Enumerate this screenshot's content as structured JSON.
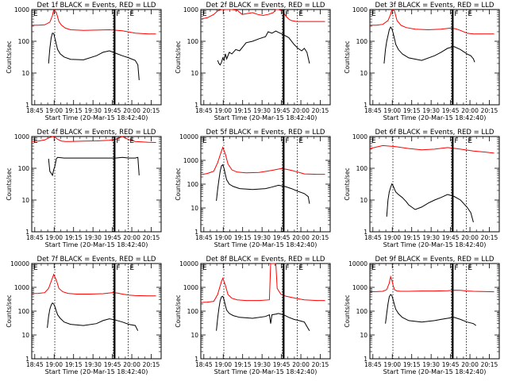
{
  "colors": {
    "events": "#000000",
    "lld": "#ff0000",
    "axes": "#000000",
    "bg": "#ffffff"
  },
  "common": {
    "xlabel": "Start Time (20-Mar-15 18:42:40)",
    "ylabel": "Counts/sec",
    "xticks": [
      "18:45",
      "19:00",
      "19:15",
      "19:30",
      "19:45",
      "20:00",
      "20:15"
    ],
    "xtick_minutes": [
      2.33,
      17.33,
      32.33,
      47.33,
      62.33,
      77.33,
      92.33
    ],
    "xlim_minutes": [
      0,
      100
    ],
    "flag_letters": [
      "E",
      "F",
      "E"
    ],
    "dotted_lines_minutes": [
      17.8,
      63.0,
      74.5
    ],
    "solid_line_minutes": 64.0
  },
  "chart_data": [
    {
      "type": "line",
      "title": "Det 1f BLACK = Events, RED = LLD",
      "yscale": "log",
      "ylim": [
        1,
        1000
      ],
      "yticks": [
        "1",
        "10",
        "100",
        "1000"
      ],
      "ytick_values": [
        1,
        10,
        100,
        1000
      ],
      "series": [
        {
          "color": "#ff0000",
          "t": [
            0,
            5,
            10,
            14,
            16,
            17,
            19,
            21,
            23,
            26,
            30,
            40,
            50,
            60,
            70,
            80,
            90,
            96
          ],
          "values": [
            320,
            320,
            330,
            400,
            650,
            1000,
            800,
            420,
            320,
            260,
            230,
            220,
            225,
            230,
            215,
            180,
            170,
            170
          ]
        },
        {
          "color": "#000000",
          "t": [
            13,
            14,
            15,
            16,
            17,
            18,
            19,
            20,
            22,
            25,
            30,
            40,
            50,
            55,
            60,
            65,
            70,
            75,
            80,
            82,
            83
          ],
          "values": [
            20,
            60,
            130,
            180,
            175,
            120,
            80,
            55,
            40,
            32,
            27,
            26,
            35,
            45,
            50,
            42,
            35,
            30,
            25,
            18,
            6
          ]
        }
      ]
    },
    {
      "type": "line",
      "title": "Det 2f BLACK = Events, RED = LLD",
      "yscale": "log",
      "ylim": [
        1,
        1000
      ],
      "yticks": [
        "1",
        "10",
        "100",
        "1000"
      ],
      "ytick_values": [
        1,
        10,
        100,
        1000
      ],
      "series": [
        {
          "color": "#ff0000",
          "t": [
            0,
            5,
            10,
            13,
            16,
            17,
            20,
            24,
            28,
            32,
            36,
            40,
            44,
            48,
            52,
            56,
            58,
            60,
            63,
            66,
            68,
            70,
            74,
            80,
            90,
            96
          ],
          "values": [
            500,
            550,
            700,
            900,
            1000,
            1000,
            1000,
            1000,
            950,
            700,
            750,
            800,
            700,
            650,
            700,
            800,
            1000,
            1000,
            900,
            600,
            500,
            450,
            420,
            420,
            420,
            420
          ]
        },
        {
          "color": "#000000",
          "t": [
            13,
            14,
            15,
            16,
            17,
            18,
            19,
            20,
            22,
            24,
            27,
            30,
            35,
            40,
            45,
            50,
            52,
            55,
            58,
            60,
            64,
            68,
            72,
            75,
            78,
            80,
            82,
            84
          ],
          "values": [
            25,
            20,
            18,
            22,
            30,
            25,
            40,
            28,
            45,
            40,
            55,
            50,
            90,
            100,
            120,
            140,
            200,
            180,
            210,
            190,
            160,
            130,
            80,
            60,
            50,
            60,
            45,
            20
          ]
        }
      ]
    },
    {
      "type": "line",
      "title": "Det 3f BLACK = Events, RED = LLD",
      "yscale": "log",
      "ylim": [
        1,
        1000
      ],
      "yticks": [
        "1",
        "10",
        "100",
        "1000"
      ],
      "ytick_values": [
        1,
        10,
        100,
        1000
      ],
      "series": [
        {
          "color": "#ff0000",
          "t": [
            0,
            5,
            10,
            14,
            16,
            17,
            19,
            21,
            24,
            28,
            35,
            45,
            55,
            62,
            66,
            70,
            75,
            80,
            90,
            96
          ],
          "values": [
            320,
            320,
            340,
            450,
            700,
            1000,
            900,
            450,
            320,
            270,
            240,
            230,
            240,
            260,
            250,
            220,
            180,
            170,
            170,
            170
          ]
        },
        {
          "color": "#000000",
          "t": [
            11,
            12,
            13,
            14,
            15,
            16,
            17,
            18,
            19,
            20,
            22,
            25,
            30,
            40,
            50,
            55,
            60,
            65,
            70,
            75,
            78,
            80,
            81
          ],
          "values": [
            20,
            55,
            100,
            150,
            230,
            280,
            250,
            180,
            120,
            80,
            55,
            40,
            30,
            25,
            35,
            45,
            60,
            68,
            55,
            40,
            35,
            28,
            22
          ]
        }
      ]
    },
    {
      "type": "line",
      "title": "Det 4f BLACK = Events, RED = LLD",
      "yscale": "log",
      "ylim": [
        1,
        1000
      ],
      "yticks": [
        "1",
        "10",
        "100",
        "1000"
      ],
      "ytick_values": [
        1,
        10,
        100,
        1000
      ],
      "series": [
        {
          "color": "#ff0000",
          "t": [
            0,
            5,
            10,
            13,
            16,
            18,
            20,
            23,
            26,
            30,
            40,
            50,
            60,
            65,
            70,
            75,
            80,
            85,
            90,
            96
          ],
          "values": [
            700,
            720,
            780,
            900,
            1000,
            950,
            820,
            720,
            700,
            700,
            720,
            730,
            760,
            820,
            1000,
            800,
            700,
            680,
            660,
            650
          ]
        },
        {
          "color": "#000000",
          "t": [
            13,
            14,
            15,
            16,
            17,
            18,
            19,
            20,
            25,
            30,
            40,
            50,
            60,
            65,
            70,
            75,
            80,
            82,
            83
          ],
          "values": [
            200,
            80,
            70,
            60,
            90,
            120,
            200,
            220,
            210,
            210,
            210,
            210,
            210,
            210,
            220,
            210,
            210,
            220,
            60
          ]
        }
      ]
    },
    {
      "type": "line",
      "title": "Det 5f BLACK = Events, RED = LLD",
      "yscale": "log",
      "ylim": [
        1,
        10000
      ],
      "yticks": [
        "1",
        "10",
        "100",
        "1000",
        "10000"
      ],
      "ytick_values": [
        1,
        10,
        100,
        1000,
        10000
      ],
      "series": [
        {
          "color": "#ff0000",
          "t": [
            0,
            5,
            10,
            13,
            16,
            17,
            19,
            21,
            24,
            28,
            35,
            45,
            55,
            62,
            66,
            70,
            75,
            80,
            90,
            96
          ],
          "values": [
            250,
            280,
            350,
            800,
            2500,
            3500,
            1800,
            700,
            400,
            320,
            300,
            310,
            380,
            450,
            420,
            380,
            320,
            270,
            260,
            260
          ]
        },
        {
          "color": "#000000",
          "t": [
            12,
            13,
            14,
            15,
            16,
            17,
            18,
            19,
            20,
            22,
            25,
            30,
            40,
            50,
            55,
            60,
            65,
            70,
            75,
            80,
            83,
            84
          ],
          "values": [
            20,
            60,
            150,
            350,
            600,
            650,
            450,
            250,
            150,
            100,
            80,
            65,
            60,
            65,
            75,
            90,
            80,
            65,
            50,
            40,
            30,
            15
          ]
        }
      ]
    },
    {
      "type": "line",
      "title": "Det 6f BLACK = Events, RED = LLD",
      "yscale": "log",
      "ylim": [
        1,
        1000
      ],
      "yticks": [
        "1",
        "10",
        "100",
        "1000"
      ],
      "ytick_values": [
        1,
        10,
        100,
        1000
      ],
      "series": [
        {
          "color": "#ff0000",
          "t": [
            0,
            10,
            20,
            30,
            40,
            50,
            60,
            70,
            80,
            90,
            96
          ],
          "values": [
            420,
            520,
            480,
            420,
            380,
            400,
            450,
            400,
            350,
            320,
            300
          ]
        },
        {
          "color": "#000000",
          "t": [
            13,
            14,
            15,
            16,
            17,
            18,
            19,
            20,
            22,
            25,
            28,
            30,
            35,
            40,
            45,
            50,
            55,
            60,
            65,
            70,
            75,
            78,
            80
          ],
          "values": [
            3,
            10,
            18,
            25,
            32,
            28,
            22,
            18,
            15,
            12,
            9,
            7,
            5,
            6,
            8,
            10,
            12,
            15,
            13,
            10,
            6,
            4,
            2
          ]
        }
      ]
    },
    {
      "type": "line",
      "title": "Det 7f BLACK = Events, RED = LLD",
      "yscale": "log",
      "ylim": [
        1,
        10000
      ],
      "yticks": [
        "1",
        "10",
        "100",
        "1000",
        "10000"
      ],
      "ytick_values": [
        1,
        10,
        100,
        1000,
        10000
      ],
      "series": [
        {
          "color": "#ff0000",
          "t": [
            0,
            5,
            10,
            13,
            16,
            17,
            19,
            21,
            24,
            28,
            35,
            45,
            55,
            62,
            66,
            70,
            75,
            80,
            90,
            96
          ],
          "values": [
            550,
            560,
            600,
            900,
            2500,
            3500,
            2000,
            900,
            650,
            560,
            520,
            520,
            540,
            600,
            580,
            520,
            470,
            450,
            440,
            440
          ]
        },
        {
          "color": "#000000",
          "t": [
            12,
            13,
            14,
            15,
            16,
            17,
            18,
            19,
            20,
            22,
            25,
            30,
            40,
            50,
            55,
            60,
            65,
            70,
            75,
            80,
            82
          ],
          "values": [
            20,
            60,
            120,
            180,
            220,
            200,
            150,
            100,
            70,
            50,
            35,
            28,
            25,
            30,
            40,
            48,
            42,
            35,
            28,
            25,
            15
          ]
        }
      ]
    },
    {
      "type": "line",
      "title": "Det 8f BLACK = Events, RED = LLD",
      "yscale": "log",
      "ylim": [
        1,
        10000
      ],
      "yticks": [
        "1",
        "10",
        "100",
        "1000",
        "10000"
      ],
      "ytick_values": [
        1,
        10,
        100,
        1000,
        10000
      ],
      "series": [
        {
          "color": "#ff0000",
          "t": [
            0,
            5,
            10,
            13,
            16,
            17,
            19,
            21,
            24,
            28,
            35,
            45,
            53,
            54,
            55,
            57,
            58,
            59,
            62,
            66,
            70,
            75,
            80,
            90,
            96
          ],
          "values": [
            230,
            240,
            260,
            500,
            1800,
            2400,
            1200,
            500,
            350,
            300,
            280,
            280,
            300,
            10000,
            10000,
            10000,
            10000,
            900,
            500,
            420,
            380,
            330,
            300,
            280,
            280
          ]
        },
        {
          "color": "#000000",
          "t": [
            12,
            13,
            14,
            15,
            16,
            17,
            18,
            19,
            20,
            22,
            25,
            30,
            40,
            50,
            53,
            54,
            55,
            58,
            60,
            64,
            68,
            72,
            76,
            80,
            84
          ],
          "values": [
            15,
            50,
            130,
            280,
            400,
            420,
            300,
            170,
            110,
            80,
            65,
            55,
            50,
            60,
            70,
            30,
            70,
            75,
            80,
            70,
            55,
            45,
            40,
            35,
            15
          ]
        }
      ]
    },
    {
      "type": "line",
      "title": "Det 9f BLACK = Events, RED = LLD",
      "yscale": "log",
      "ylim": [
        1,
        10000
      ],
      "yticks": [
        "1",
        "10",
        "100",
        "1000",
        "10000"
      ],
      "ytick_values": [
        1,
        10,
        100,
        1000,
        10000
      ],
      "series": [
        {
          "color": "#ff0000",
          "t": [
            0,
            5,
            10,
            13,
            15,
            16,
            17,
            18,
            19,
            21,
            24,
            30,
            40,
            50,
            60,
            66,
            70,
            75,
            80,
            90,
            96
          ],
          "values": [
            650,
            660,
            680,
            800,
            1500,
            2800,
            2000,
            1200,
            800,
            700,
            680,
            680,
            700,
            700,
            720,
            760,
            750,
            700,
            680,
            660,
            650
          ]
        },
        {
          "color": "#000000",
          "t": [
            12,
            13,
            14,
            15,
            16,
            17,
            18,
            19,
            20,
            22,
            25,
            30,
            40,
            50,
            55,
            60,
            65,
            70,
            75,
            80,
            82
          ],
          "values": [
            30,
            80,
            200,
            400,
            500,
            450,
            300,
            180,
            120,
            80,
            55,
            40,
            35,
            40,
            45,
            50,
            55,
            45,
            35,
            30,
            25
          ]
        }
      ]
    }
  ]
}
